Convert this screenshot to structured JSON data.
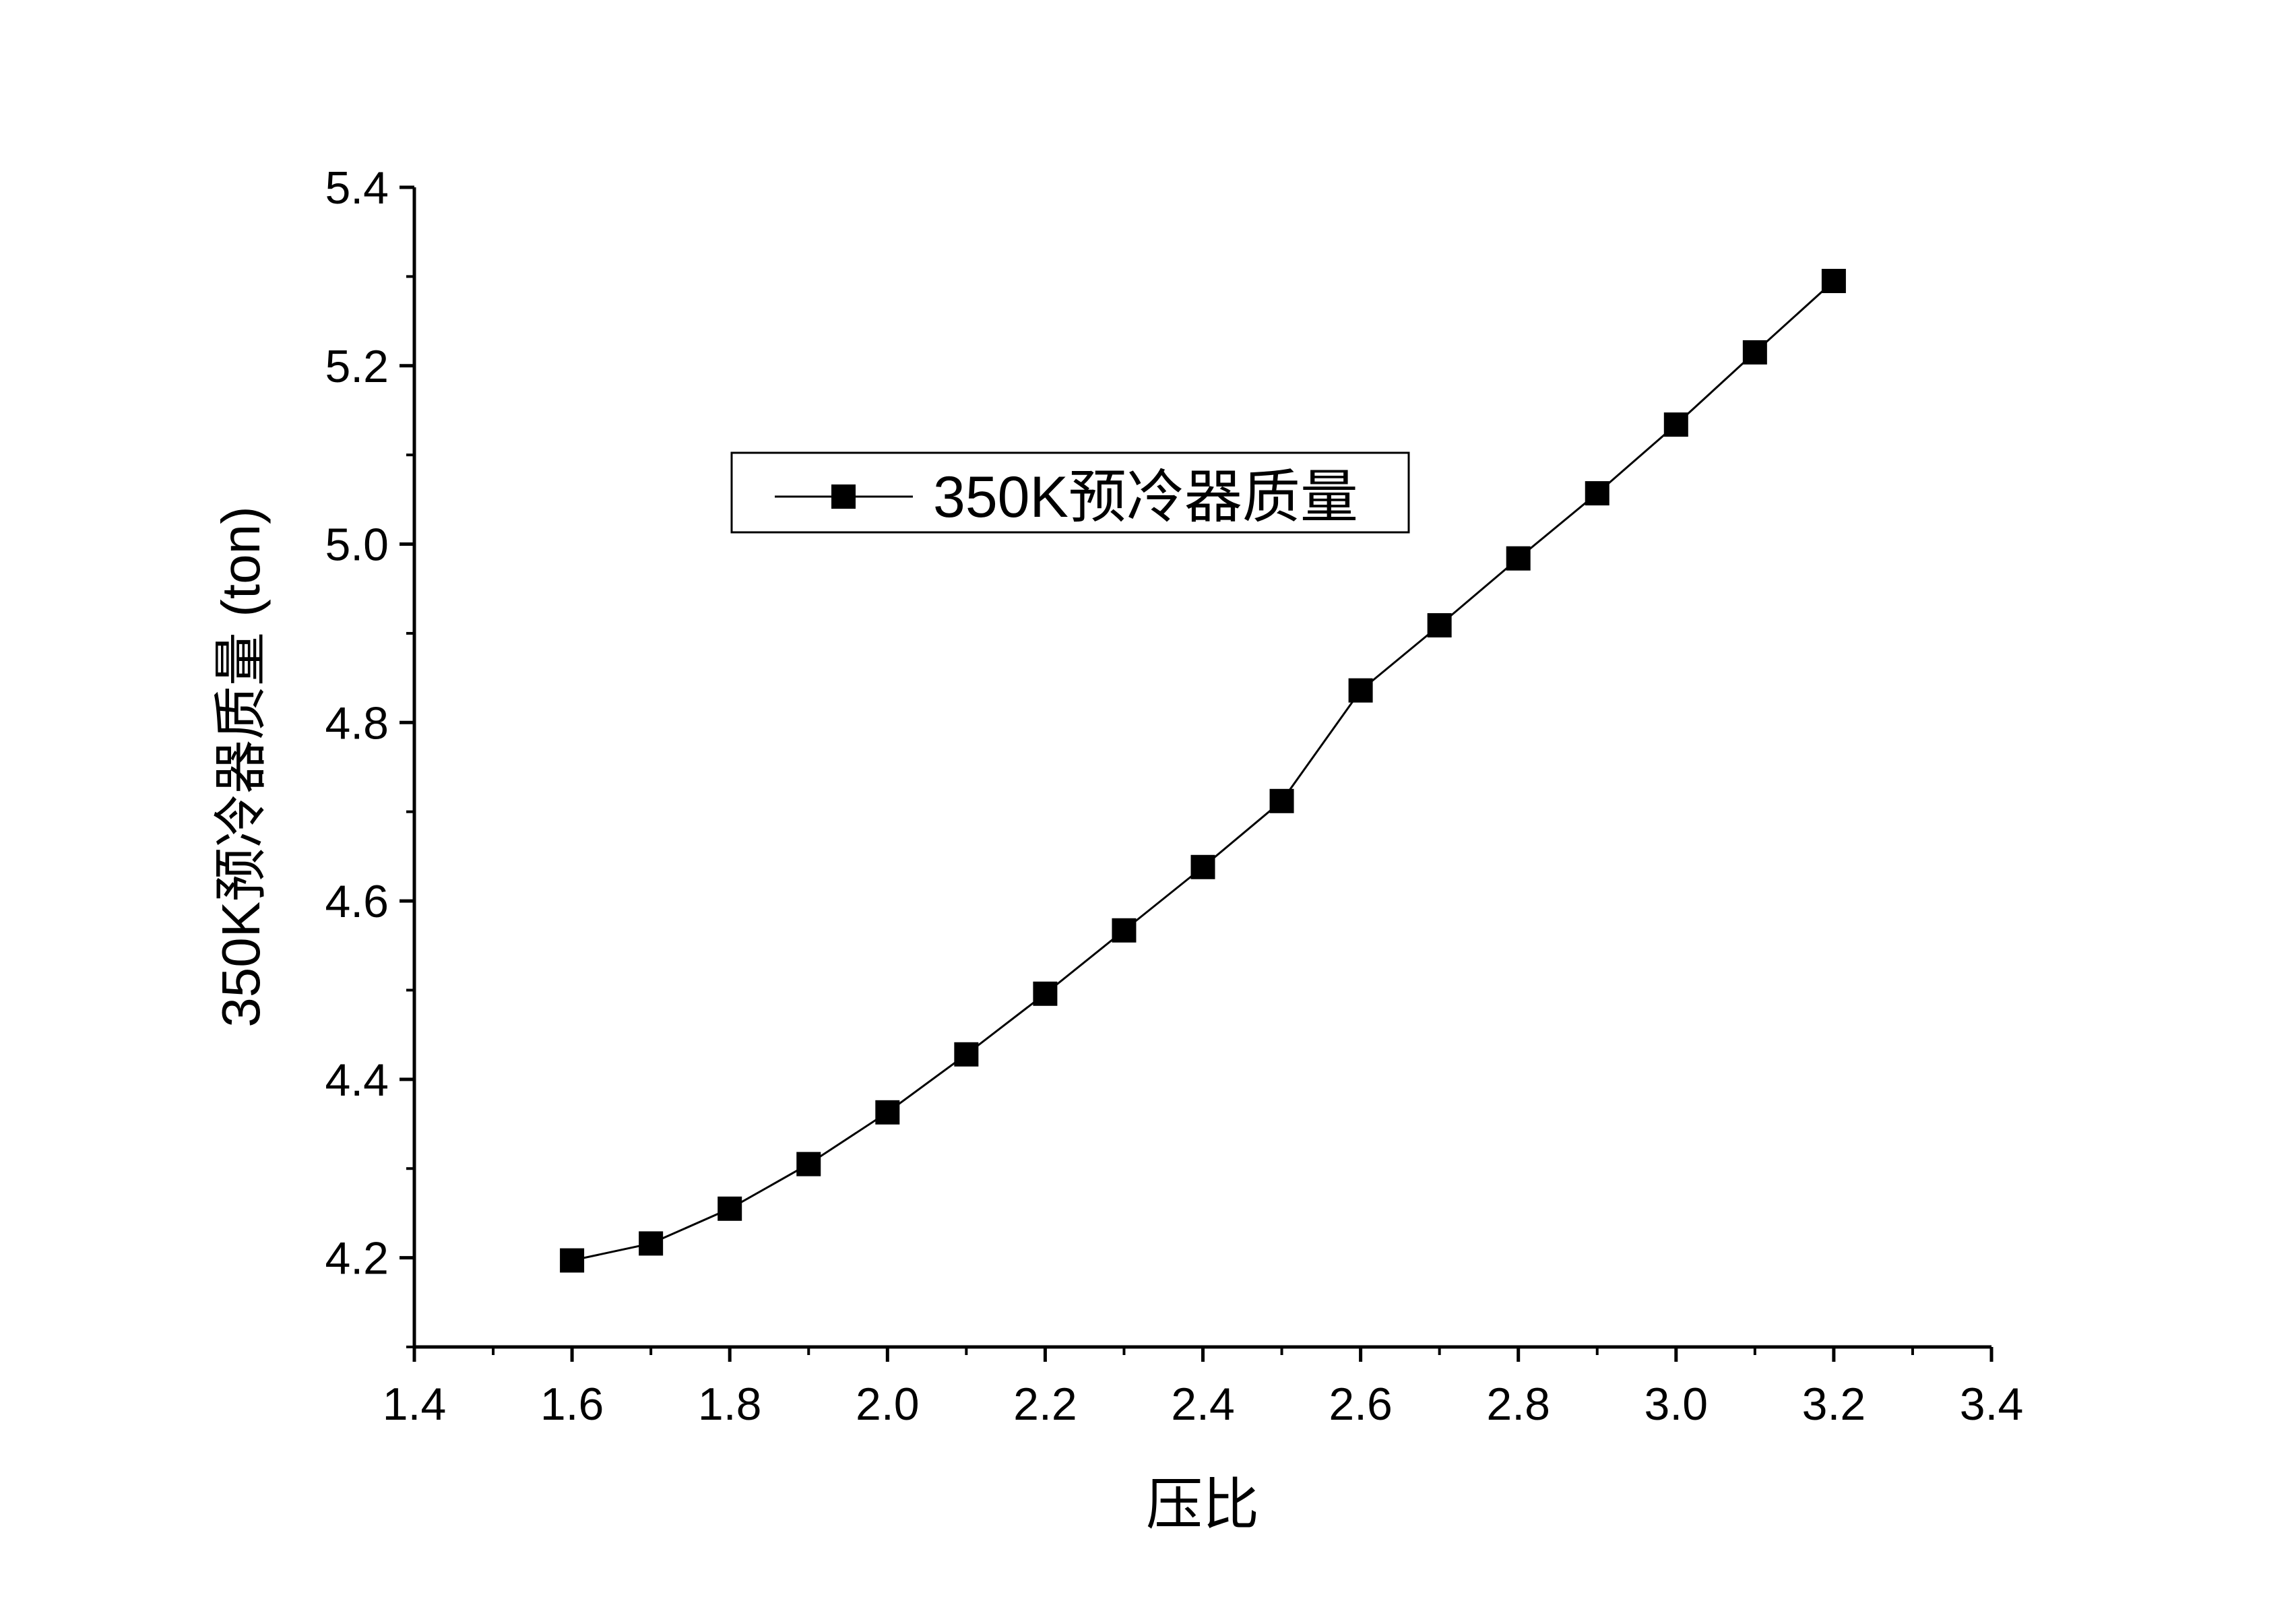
{
  "chart_data": {
    "type": "line",
    "xlabel": "压比",
    "ylabel": "350K预冷器质量 (ton)",
    "xlim": [
      1.4,
      3.4
    ],
    "ylim": [
      4.1,
      5.4
    ],
    "x_ticks": [
      "1.4",
      "1.6",
      "1.8",
      "2.0",
      "2.2",
      "2.4",
      "2.6",
      "2.8",
      "3.0",
      "3.2",
      "3.4"
    ],
    "y_ticks": [
      "4.2",
      "4.4",
      "4.6",
      "4.8",
      "5.0",
      "5.2",
      "5.4"
    ],
    "grid": false,
    "legend_position": "top-center",
    "series": [
      {
        "name": "350K预冷器质量",
        "marker": "square",
        "color": "#000000",
        "x": [
          1.6,
          1.7,
          1.8,
          1.9,
          2.0,
          2.1,
          2.2,
          2.3,
          2.4,
          2.5,
          2.6,
          2.7,
          2.8,
          2.9,
          3.0,
          3.1,
          3.2
        ],
        "y": [
          4.197,
          4.216,
          4.255,
          4.305,
          4.363,
          4.428,
          4.496,
          4.567,
          4.638,
          4.712,
          4.836,
          4.909,
          4.984,
          5.057,
          5.134,
          5.215,
          5.295
        ]
      }
    ]
  }
}
